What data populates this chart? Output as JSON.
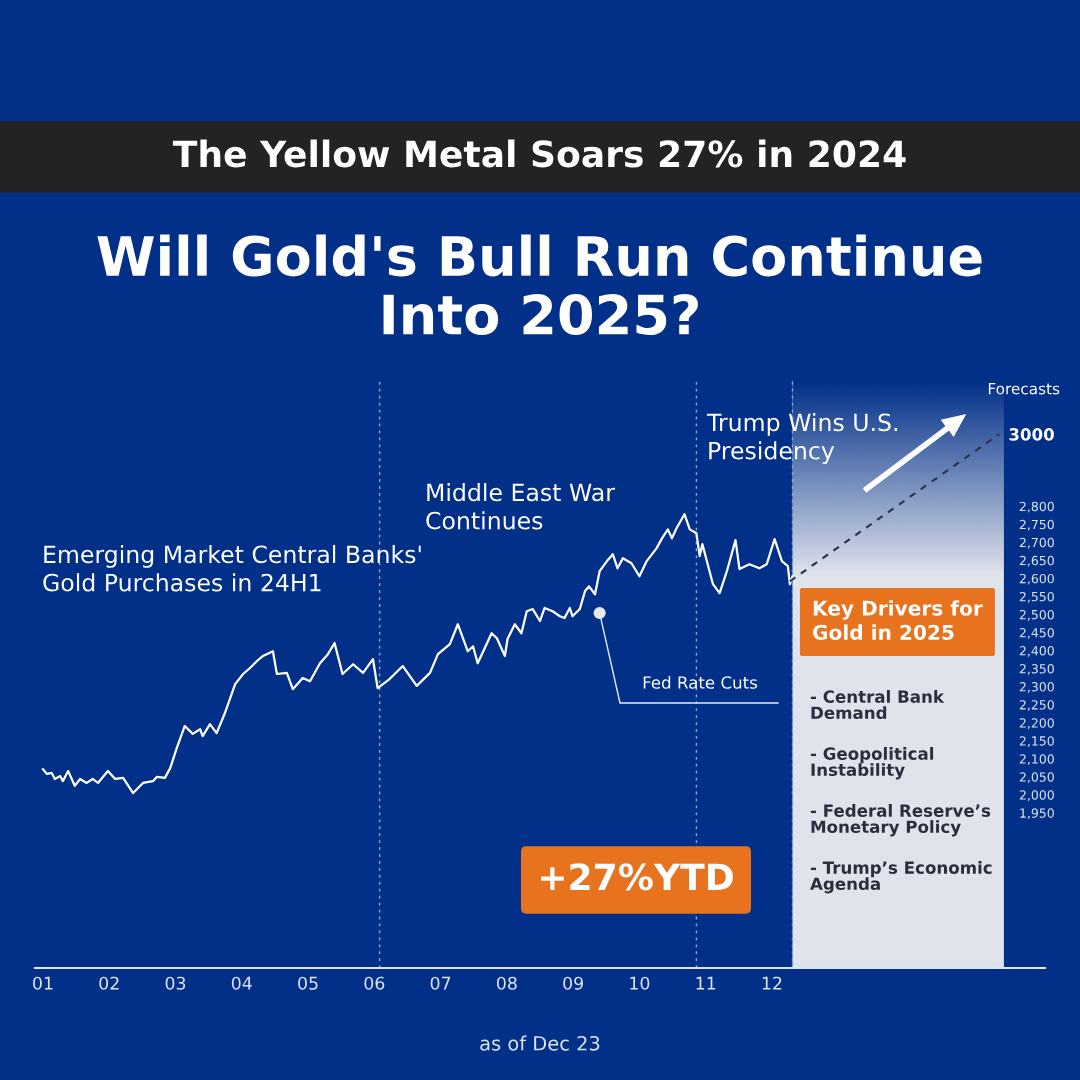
{
  "chart_data": {
    "type": "line",
    "title": "Will Gold's Bull Run Continue Into 2025?",
    "subtitle": "The Yellow Metal Soars 27% in 2024",
    "xlim": [
      0.88,
      16.12
    ],
    "xticks": [
      {
        "value": 1,
        "label": "01"
      },
      {
        "value": 2,
        "label": "02"
      },
      {
        "value": 3,
        "label": "03"
      },
      {
        "value": 4,
        "label": "04"
      },
      {
        "value": 5,
        "label": "05"
      },
      {
        "value": 6,
        "label": "06"
      },
      {
        "value": 7,
        "label": "07"
      },
      {
        "value": 8,
        "label": "08"
      },
      {
        "value": 9,
        "label": "09"
      },
      {
        "value": 10,
        "label": "10"
      },
      {
        "value": 11,
        "label": "11"
      },
      {
        "value": 12,
        "label": "12"
      }
    ],
    "ylim": [
      1520,
      3150
    ],
    "yticks": [
      {
        "value": 1950,
        "label": "1,950"
      },
      {
        "value": 2000,
        "label": "2,000"
      },
      {
        "value": 2050,
        "label": "2,050"
      },
      {
        "value": 2100,
        "label": "2,100"
      },
      {
        "value": 2150,
        "label": "2,150"
      },
      {
        "value": 2200,
        "label": "2,200"
      },
      {
        "value": 2250,
        "label": "2,250"
      },
      {
        "value": 2300,
        "label": "2,300"
      },
      {
        "value": 2350,
        "label": "2,350"
      },
      {
        "value": 2400,
        "label": "2,400"
      },
      {
        "value": 2450,
        "label": "2,450"
      },
      {
        "value": 2500,
        "label": "2,500"
      },
      {
        "value": 2550,
        "label": "2,550"
      },
      {
        "value": 2600,
        "label": "2,600"
      },
      {
        "value": 2650,
        "label": "2,650"
      },
      {
        "value": 2700,
        "label": "2,700"
      },
      {
        "value": 2750,
        "label": "2,750"
      },
      {
        "value": 2800,
        "label": "2,800"
      },
      3000
    ],
    "series": [
      {
        "color": "#ffffff",
        "line_style": "solid",
        "x": [
          1.0,
          1.06,
          1.13,
          1.18,
          1.26,
          1.3,
          1.38,
          1.48,
          1.56,
          1.66,
          1.75,
          1.83,
          1.98,
          2.09,
          2.21,
          2.36,
          2.51,
          2.66,
          2.72,
          2.84,
          2.92,
          3.02,
          3.14,
          3.26,
          3.37,
          3.41,
          3.52,
          3.62,
          3.74,
          3.9,
          4.02,
          4.12,
          4.23,
          4.32,
          4.47,
          4.53,
          4.68,
          4.77,
          4.92,
          5.03,
          5.18,
          5.3,
          5.4,
          5.52,
          5.68,
          5.83,
          5.98,
          6.05,
          6.23,
          6.43,
          6.64,
          6.84,
          6.96,
          7.14,
          7.26,
          7.41,
          7.49,
          7.56,
          7.77,
          7.85,
          7.97,
          8.01,
          8.12,
          8.22,
          8.3,
          8.39,
          8.5,
          8.57,
          8.69,
          8.8,
          8.87,
          8.95,
          8.99,
          9.1,
          9.18,
          9.24,
          9.33,
          9.4,
          9.51,
          9.6,
          9.67,
          9.75,
          9.88,
          10.0,
          10.11,
          10.26,
          10.34,
          10.43,
          10.49,
          10.56,
          10.68,
          10.76,
          10.86,
          10.91,
          10.95,
          11.11,
          11.21,
          11.32,
          11.45,
          11.51,
          11.66,
          11.81,
          11.92,
          12.04,
          12.15,
          12.24,
          12.27,
          12.31
        ],
        "values": [
          2071,
          2058,
          2061,
          2044,
          2052,
          2038,
          2066,
          2025,
          2044,
          2033,
          2044,
          2033,
          2066,
          2044,
          2047,
          2005,
          2033,
          2038,
          2050,
          2047,
          2074,
          2130,
          2191,
          2169,
          2182,
          2163,
          2196,
          2171,
          2224,
          2307,
          2335,
          2351,
          2371,
          2385,
          2398,
          2335,
          2338,
          2293,
          2324,
          2315,
          2365,
          2390,
          2421,
          2335,
          2362,
          2338,
          2376,
          2296,
          2321,
          2357,
          2302,
          2338,
          2390,
          2418,
          2473,
          2398,
          2412,
          2365,
          2448,
          2434,
          2385,
          2432,
          2473,
          2448,
          2509,
          2515,
          2482,
          2518,
          2509,
          2495,
          2490,
          2518,
          2495,
          2515,
          2565,
          2578,
          2556,
          2620,
          2648,
          2667,
          2628,
          2656,
          2642,
          2606,
          2648,
          2684,
          2711,
          2736,
          2711,
          2739,
          2778,
          2736,
          2725,
          2662,
          2695,
          2584,
          2559,
          2620,
          2706,
          2626,
          2639,
          2628,
          2639,
          2709,
          2648,
          2634,
          2584,
          2606
        ]
      },
      {
        "type": "line",
        "color": "#2b3550",
        "line_style": "dashed",
        "x": [
          12.27,
          15.43
        ],
        "values": [
          2592,
          3000
        ]
      }
    ],
    "ref_lines": [
      {
        "axis": "x",
        "value": 6.08,
        "color": "#8fa6d6",
        "line_style": "dotted"
      },
      {
        "axis": "x",
        "value": 10.86,
        "color": "#8fa6d6",
        "line_style": "dotted"
      },
      {
        "axis": "x",
        "value": 12.31,
        "color": "#8fa6d6",
        "line_style": "dotted"
      }
    ],
    "bands": [
      {
        "axis": "x",
        "from": 12.31,
        "to": 15.5,
        "color": "#dfe3ec"
      }
    ],
    "grid": false,
    "annotations": [
      "Emerging Market Central Banks' Gold Purchases in 24H1",
      "Middle East War Continues",
      "Trump Wins U.S. Presidency",
      "Forecasts",
      {
        "text": "Fed Rate Cuts",
        "x": 9.4,
        "y": 2504
      },
      "+27%YTD",
      "Key Drivers for Gold in 2025",
      "- Central Bank Demand",
      "- Geopolitical Instability",
      "- Federal Reserve’s Monetary Policy",
      "- Trump’s Economic Agenda",
      "as of Dec 23"
    ]
  }
}
